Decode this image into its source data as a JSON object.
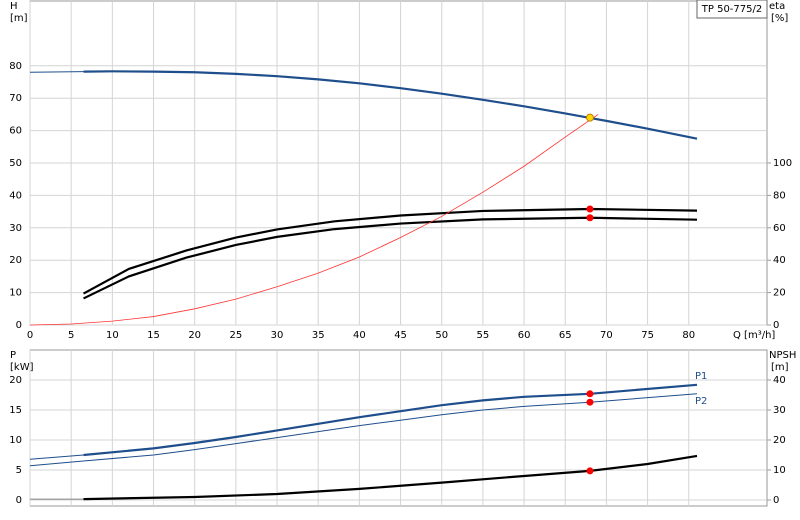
{
  "chart_data": [
    {
      "type": "line",
      "title": "TP 50-775/2",
      "ylabel": "H",
      "yunit": "[m]",
      "y2label": "eta",
      "y2unit": "[%]",
      "xlabel": "Q [m³/h]",
      "xlim": [
        0,
        89.5
      ],
      "xticks": [
        0,
        5,
        10,
        15,
        20,
        25,
        30,
        35,
        40,
        45,
        50,
        55,
        60,
        65,
        70,
        75,
        80
      ],
      "ylim": [
        0,
        100
      ],
      "yticks": [
        0,
        10,
        20,
        30,
        40,
        50,
        60,
        70,
        80
      ],
      "y2lim": [
        0,
        200
      ],
      "y2ticks": [
        0,
        20,
        40,
        60,
        80,
        100
      ],
      "grid": true,
      "series": [
        {
          "color": "#1f4e8c",
          "width": 1,
          "x": [
            0,
            6.5
          ],
          "values": [
            78,
            78.2
          ]
        },
        {
          "color": "#1f4e8c",
          "width": 2.2,
          "x": [
            6.5,
            10,
            15,
            20,
            25,
            30,
            35,
            40,
            45,
            50,
            55,
            60,
            65,
            68,
            70,
            75,
            81
          ],
          "values": [
            78.2,
            78.3,
            78.2,
            78,
            77.5,
            76.8,
            75.8,
            74.6,
            73.1,
            71.4,
            69.5,
            67.5,
            65.3,
            63.9,
            63,
            60.6,
            57.5
          ]
        },
        {
          "color": "#000000",
          "width": 2.2,
          "axis": "y2",
          "x": [
            6.5,
            12,
            19,
            25,
            30,
            37,
            45,
            55,
            68,
            81
          ],
          "values": [
            19.4,
            34.6,
            46,
            54,
            59,
            64,
            67.6,
            70.4,
            71.6,
            70.6
          ]
        },
        {
          "color": "#000000",
          "width": 2.2,
          "axis": "y2",
          "x": [
            6.5,
            12,
            19,
            25,
            30,
            37,
            45,
            55,
            68,
            81
          ],
          "values": [
            16.4,
            30,
            41.6,
            49.4,
            54.4,
            59.2,
            62.6,
            65.2,
            66.2,
            65
          ]
        },
        {
          "color": "#ff3333",
          "width": 0.8,
          "x": [
            0,
            5,
            10,
            15,
            20,
            25,
            30,
            35,
            40,
            45,
            50,
            55,
            60,
            65,
            69
          ],
          "values": [
            0,
            0.3,
            1.2,
            2.6,
            5,
            8,
            11.8,
            16,
            21,
            27,
            33.5,
            41,
            49,
            58,
            65
          ]
        }
      ],
      "points": [
        {
          "color": "#ffd700",
          "x": 68,
          "y": 64
        },
        {
          "color": "#ff0000",
          "axis": "y2",
          "x": 68,
          "y": 71.6
        },
        {
          "color": "#ff0000",
          "axis": "y2",
          "x": 68,
          "y": 66.2
        }
      ]
    },
    {
      "type": "line",
      "ylabel": "P",
      "yunit": "[kW]",
      "y2label": "NPSH",
      "y2unit": "[m]",
      "xlim": [
        0,
        89.5
      ],
      "ylim": [
        -1,
        25
      ],
      "yticks": [
        0,
        5,
        10,
        15,
        20
      ],
      "y2lim": [
        -2,
        50
      ],
      "y2ticks": [
        0,
        10,
        20,
        30,
        40
      ],
      "grid": true,
      "series": [
        {
          "color": "#1f4e8c",
          "width": 1,
          "x": [
            0,
            6.5
          ],
          "values": [
            6.8,
            7.5
          ]
        },
        {
          "name": "P1",
          "color": "#1f4e8c",
          "width": 2.2,
          "x": [
            6.5,
            15,
            20,
            25,
            30,
            35,
            40,
            45,
            50,
            55,
            60,
            68,
            81
          ],
          "values": [
            7.5,
            8.6,
            9.5,
            10.5,
            11.6,
            12.7,
            13.8,
            14.8,
            15.8,
            16.6,
            17.2,
            17.7,
            19.2
          ]
        },
        {
          "color": "#1f4e8c",
          "width": 1,
          "x": [
            0,
            6.5
          ],
          "values": [
            5.7,
            6.5
          ]
        },
        {
          "name": "P2",
          "color": "#1f4e8c",
          "width": 1,
          "x": [
            6.5,
            15,
            20,
            25,
            30,
            35,
            40,
            45,
            50,
            55,
            60,
            68,
            81
          ],
          "values": [
            6.5,
            7.5,
            8.4,
            9.4,
            10.4,
            11.4,
            12.4,
            13.3,
            14.2,
            15,
            15.6,
            16.3,
            17.7
          ]
        },
        {
          "color": "#888888",
          "width": 1,
          "axis": "y2",
          "x": [
            0,
            6.5
          ],
          "values": [
            0.3,
            0.3
          ]
        },
        {
          "color": "#000000",
          "width": 2.2,
          "axis": "y2",
          "x": [
            6.5,
            20,
            30,
            40,
            50,
            60,
            68,
            75,
            81
          ],
          "values": [
            0.3,
            1,
            2,
            3.7,
            5.8,
            8,
            9.7,
            12,
            14.7
          ]
        }
      ],
      "points": [
        {
          "color": "#ff0000",
          "x": 68,
          "y": 17.7
        },
        {
          "color": "#ff0000",
          "x": 68,
          "y": 16.3
        },
        {
          "color": "#ff0000",
          "axis": "y2",
          "x": 68,
          "y": 9.7
        }
      ]
    }
  ]
}
